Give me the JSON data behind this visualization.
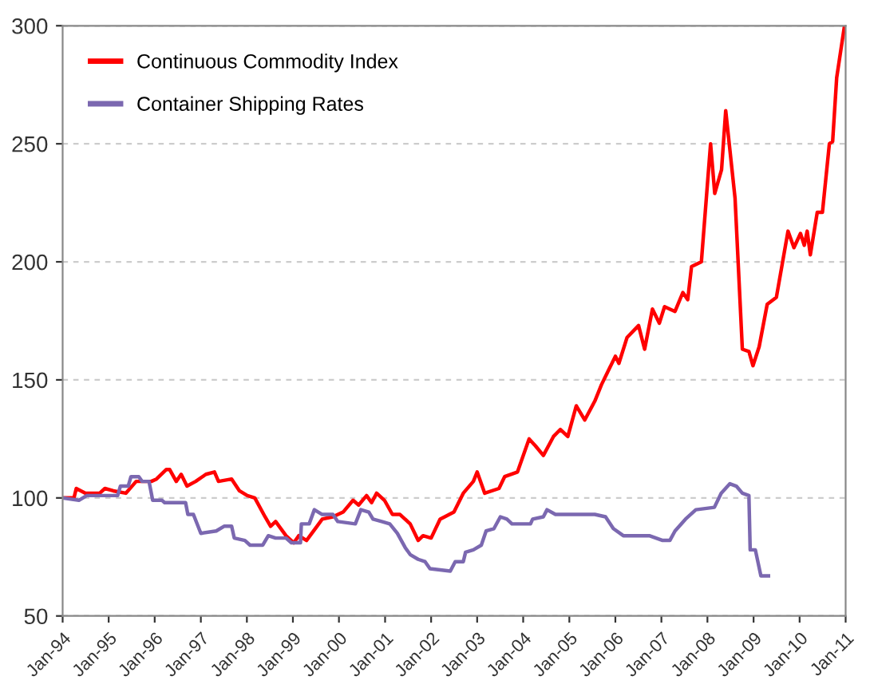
{
  "chart_data": {
    "type": "line",
    "xlim": [
      "1994-01",
      "2011-01"
    ],
    "ylim": [
      50,
      300
    ],
    "xticks": [
      {
        "value": "1994-01",
        "label": "Jan-94"
      },
      {
        "value": "1995-01",
        "label": "Jan-95"
      },
      {
        "value": "1996-01",
        "label": "Jan-96"
      },
      {
        "value": "1997-01",
        "label": "Jan-97"
      },
      {
        "value": "1998-01",
        "label": "Jan-98"
      },
      {
        "value": "1999-01",
        "label": "Jan-99"
      },
      {
        "value": "2000-01",
        "label": "Jan-00"
      },
      {
        "value": "2001-01",
        "label": "Jan-01"
      },
      {
        "value": "2002-01",
        "label": "Jan-02"
      },
      {
        "value": "2003-01",
        "label": "Jan-03"
      },
      {
        "value": "2004-01",
        "label": "Jan-04"
      },
      {
        "value": "2005-01",
        "label": "Jan-05"
      },
      {
        "value": "2006-01",
        "label": "Jan-06"
      },
      {
        "value": "2007-01",
        "label": "Jan-07"
      },
      {
        "value": "2008-01",
        "label": "Jan-08"
      },
      {
        "value": "2009-01",
        "label": "Jan-09"
      },
      {
        "value": "2010-01",
        "label": "Jan-10"
      },
      {
        "value": "2011-01",
        "label": "Jan-11"
      }
    ],
    "yticks": [
      50,
      100,
      150,
      200,
      250,
      300
    ],
    "grid": "y",
    "legend": "top left",
    "marker": "none",
    "line_style": "solid",
    "series": [
      {
        "name": "Continuous Commodity Index",
        "color": "#ff0000",
        "x": [
          "1994-01-01",
          "1994-04-01",
          "1994-04-19",
          "1994-07-01",
          "1994-10-22",
          "1994-12-02",
          "1995-02-07",
          "1995-05-17",
          "1995-08-07",
          "1995-12-05",
          "1996-01-15",
          "1996-04-01",
          "1996-04-29",
          "1996-06-20",
          "1996-07-29",
          "1996-09-13",
          "1996-11-21",
          "1997-02-10",
          "1997-04-19",
          "1997-05-21",
          "1997-09-02",
          "1997-11-03",
          "1998-01-04",
          "1998-03-05",
          "1998-05-25",
          "1998-07-08",
          "1998-08-17",
          "1998-11-07",
          "1999-01-08",
          "1999-02-17",
          "1999-04-19",
          "1999-07-11",
          "1999-08-21",
          "1999-11-14",
          "2000-02-03",
          "2000-04-22",
          "2000-06-05",
          "2000-08-07",
          "2000-09-16",
          "2000-10-26",
          "2000-12-27",
          "2001-02-28",
          "2001-04-29",
          "2001-07-19",
          "2001-09-20",
          "2001-10-29",
          "2002-01-01",
          "2002-03-13",
          "2002-07-01",
          "2002-09-13",
          "2002-12-02",
          "2003-01-01",
          "2003-03-02",
          "2003-06-23",
          "2003-08-07",
          "2003-11-17",
          "2004-02-17",
          "2004-04-08",
          "2004-06-09",
          "2004-08-28",
          "2004-10-22",
          "2004-12-20",
          "2005-02-25",
          "2005-05-03",
          "2005-07-22",
          "2005-09-13",
          "2006-01-01",
          "2006-01-29",
          "2006-04-04",
          "2006-07-04",
          "2006-08-21",
          "2006-10-22",
          "2006-12-16",
          "2007-01-26",
          "2007-04-19",
          "2007-06-20",
          "2007-07-29",
          "2007-08-28",
          "2007-11-14",
          "2008-01-26",
          "2008-02-28",
          "2008-04-22",
          "2008-05-25",
          "2008-08-07",
          "2008-10-04",
          "2008-11-25",
          "2008-12-27",
          "2009-02-14",
          "2009-04-19",
          "2009-07-01",
          "2009-10-01",
          "2009-11-17",
          "2010-01-08",
          "2010-02-07",
          "2010-03-02",
          "2010-03-27",
          "2010-05-21",
          "2010-07-01",
          "2010-08-25",
          "2010-09-20",
          "2010-10-22",
          "2010-12-23"
        ],
        "values": [
          100,
          100,
          104,
          102,
          102,
          104,
          103,
          102,
          107,
          107,
          108,
          112,
          112,
          107,
          110,
          105,
          107,
          110,
          111,
          107,
          108,
          103,
          101,
          100,
          92,
          88,
          90,
          84,
          81,
          84,
          82,
          88,
          91,
          92,
          94,
          99,
          97,
          101,
          98,
          102,
          99,
          93,
          93,
          89,
          82,
          84,
          83,
          91,
          94,
          102,
          107,
          111,
          102,
          104,
          109,
          111,
          125,
          122,
          118,
          126,
          129,
          126,
          139,
          133,
          141,
          148,
          160,
          157,
          168,
          173,
          163,
          180,
          174,
          181,
          179,
          187,
          184,
          198,
          200,
          250,
          229,
          239,
          264,
          227,
          163,
          162,
          156,
          164,
          182,
          185,
          213,
          206,
          212,
          207,
          213,
          203,
          221,
          221,
          250,
          251,
          278,
          300
        ]
      },
      {
        "name": "Container Shipping Rates",
        "color": "#7b68b0",
        "x": [
          "1994-01-01",
          "1994-05-10",
          "1994-07-11",
          "1995-03-13",
          "1995-04-04",
          "1995-06-05",
          "1995-06-27",
          "1995-08-28",
          "1995-09-23",
          "1995-11-17",
          "1995-12-16",
          "1996-02-28",
          "1996-03-20",
          "1996-09-02",
          "1996-09-20",
          "1996-11-03",
          "1997-01-01",
          "1997-05-03",
          "1997-07-04",
          "1997-09-02",
          "1997-09-23",
          "1997-12-16",
          "1998-01-26",
          "1998-05-07",
          "1998-06-20",
          "1998-08-17",
          "1998-11-07",
          "1998-12-20",
          "1999-03-02",
          "1999-03-09",
          "1999-05-10",
          "1999-06-20",
          "1999-08-21",
          "1999-11-14",
          "1999-12-23",
          "2000-05-10",
          "2000-06-23",
          "2000-08-25",
          "2000-09-27",
          "2000-12-05",
          "2001-02-07",
          "2001-04-08",
          "2001-06-09",
          "2001-07-19",
          "2001-09-20",
          "2001-11-14",
          "2001-12-23",
          "2002-06-02",
          "2002-07-11",
          "2002-09-13",
          "2002-10-01",
          "2002-12-02",
          "2003-02-03",
          "2003-03-13",
          "2003-05-14",
          "2003-07-04",
          "2003-08-25",
          "2003-10-04",
          "2004-02-28",
          "2004-03-16",
          "2004-06-09",
          "2004-07-08",
          "2004-09-13",
          "2005-05-21",
          "2005-07-22",
          "2005-10-15",
          "2005-12-16",
          "2006-03-05",
          "2006-09-27",
          "2007-01-11",
          "2007-03-09",
          "2007-04-19",
          "2007-07-11",
          "2007-10-01",
          "2008-02-25",
          "2008-04-19",
          "2008-06-27",
          "2008-08-17",
          "2008-10-04",
          "2008-11-25",
          "2008-12-05",
          "2009-01-15",
          "2009-02-28",
          "2009-04-29"
        ],
        "values": [
          100,
          99,
          101,
          101,
          105,
          105,
          109,
          109,
          107,
          107,
          99,
          99,
          98,
          98,
          93,
          93,
          85,
          86,
          88,
          88,
          83,
          82,
          80,
          80,
          84,
          83,
          83,
          81,
          81,
          89,
          89,
          95,
          93,
          93,
          90,
          89,
          95,
          94,
          91,
          90,
          89,
          85,
          79,
          76,
          74,
          73,
          70,
          69,
          73,
          73,
          77,
          78,
          80,
          86,
          87,
          92,
          91,
          89,
          89,
          91,
          92,
          95,
          93,
          93,
          93,
          92,
          87,
          84,
          84,
          82,
          82,
          86,
          91,
          95,
          96,
          102,
          106,
          105,
          102,
          101,
          78,
          78,
          67,
          67
        ]
      }
    ]
  }
}
